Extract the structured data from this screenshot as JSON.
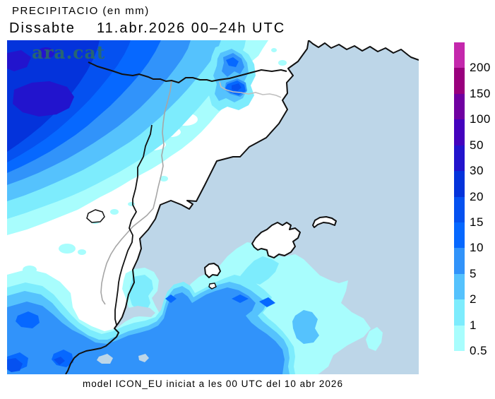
{
  "header": {
    "title": "PRECIPITACIO (en mm)",
    "subtitle": "Dissabte    11.abr.2026 00–24h UTC"
  },
  "watermark": {
    "text": "ara.cat",
    "color": "#2D6E63"
  },
  "footer": {
    "text": "model ICON_EU iniciat a les 00 UTC del 10 abr 2026"
  },
  "legend": {
    "labels_top_to_bottom": [
      "200",
      "150",
      "100",
      "50",
      "30",
      "20",
      "15",
      "10",
      "5",
      "2",
      "1",
      "0.5"
    ],
    "colors_top_to_bottom": [
      "#C428AC",
      "#99007D",
      "#7001A1",
      "#4403BE",
      "#2214CD",
      "#0433DB",
      "#0551F0",
      "#0668FF",
      "#3193FA",
      "#55C2FD",
      "#7DECFD",
      "#A8FDFD"
    ]
  },
  "map": {
    "colors": {
      "sea": "#BDD6E8",
      "land": "#FFFFFF",
      "coastline": "#111111",
      "border_gray": "#A6A6A6",
      "border_gray_light": "#BFBFBF",
      "c05": "#A8FDFD",
      "c1": "#7DECFD",
      "c2": "#55C2FD",
      "c5": "#3193FA",
      "c10": "#0668FF",
      "c15": "#0551F0",
      "c20": "#0433DB",
      "c30": "#2214CD"
    }
  }
}
